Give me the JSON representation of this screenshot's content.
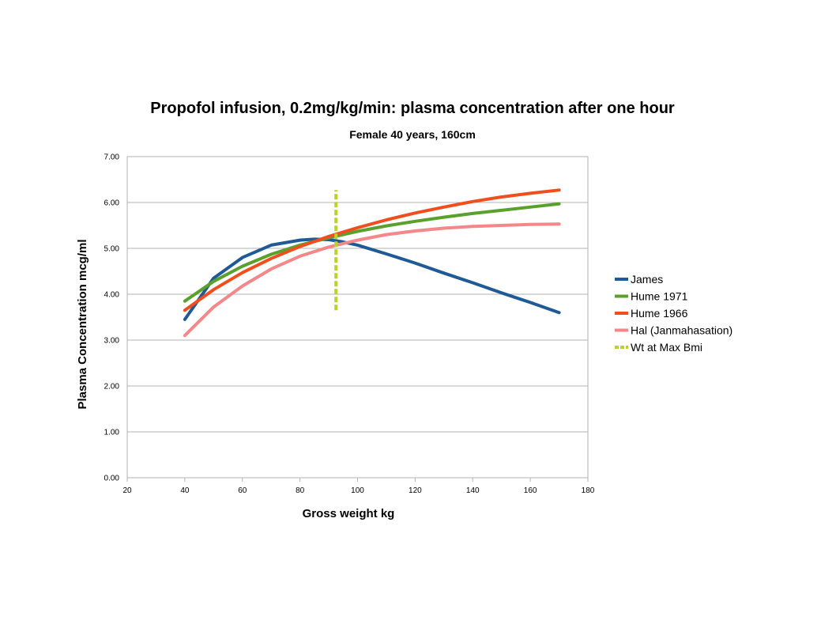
{
  "chart_data": {
    "type": "line",
    "title": "Propofol infusion, 0.2mg/kg/min: plasma concentration after one hour",
    "subtitle": "Female 40 years, 160cm",
    "xlabel": "Gross weight kg",
    "ylabel": "Plasma Concentration mcg/ml",
    "xlim": [
      20,
      180
    ],
    "ylim": [
      0,
      7
    ],
    "xticks": [
      "20",
      "40",
      "60",
      "80",
      "100",
      "120",
      "140",
      "160",
      "180"
    ],
    "yticks": [
      "0.00",
      "1.00",
      "2.00",
      "3.00",
      "4.00",
      "5.00",
      "6.00",
      "7.00"
    ],
    "grid": "horizontal",
    "legend_position": "right",
    "series": [
      {
        "name": "James",
        "color": "#1f5a96",
        "style": "solid",
        "x": [
          40,
          50,
          60,
          70,
          80,
          85,
          90,
          95,
          100,
          110,
          120,
          130,
          140,
          150,
          160,
          170
        ],
        "y": [
          3.45,
          4.35,
          4.8,
          5.07,
          5.18,
          5.2,
          5.19,
          5.14,
          5.07,
          4.88,
          4.68,
          4.46,
          4.25,
          4.03,
          3.82,
          3.6
        ]
      },
      {
        "name": "Hume 1971",
        "color": "#5aa02c",
        "style": "solid",
        "x": [
          40,
          50,
          60,
          70,
          80,
          90,
          100,
          110,
          120,
          130,
          140,
          150,
          160,
          170
        ],
        "y": [
          3.85,
          4.28,
          4.61,
          4.87,
          5.07,
          5.23,
          5.37,
          5.49,
          5.59,
          5.68,
          5.76,
          5.83,
          5.9,
          5.97
        ]
      },
      {
        "name": "Hume 1966",
        "color": "#f04e1e",
        "style": "solid",
        "x": [
          40,
          50,
          60,
          70,
          80,
          90,
          100,
          110,
          120,
          130,
          140,
          150,
          160,
          170
        ],
        "y": [
          3.65,
          4.1,
          4.47,
          4.78,
          5.04,
          5.26,
          5.45,
          5.62,
          5.77,
          5.9,
          6.02,
          6.12,
          6.2,
          6.27
        ]
      },
      {
        "name": "Hal (Janmahasation)",
        "color": "#f4878a",
        "style": "solid",
        "x": [
          40,
          50,
          60,
          70,
          80,
          90,
          100,
          110,
          120,
          130,
          140,
          150,
          160,
          170
        ],
        "y": [
          3.1,
          3.72,
          4.18,
          4.55,
          4.83,
          5.03,
          5.18,
          5.3,
          5.38,
          5.44,
          5.48,
          5.5,
          5.52,
          5.53
        ]
      },
      {
        "name": "Wt at Max Bmi",
        "color": "#b8d42c",
        "style": "dashed",
        "x": [
          92.5,
          92.5
        ],
        "y": [
          3.65,
          6.27
        ]
      }
    ]
  }
}
